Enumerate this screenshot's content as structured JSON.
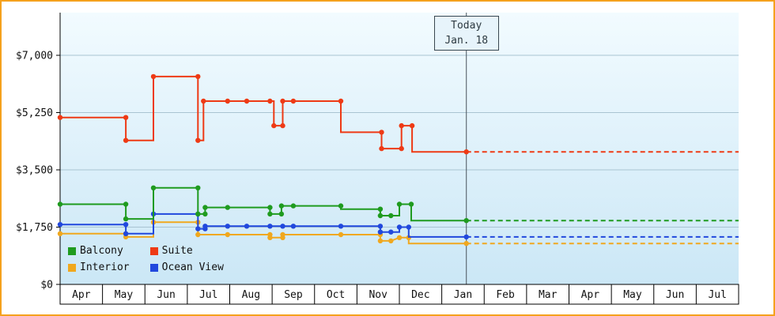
{
  "chart": {
    "frame_border_color": "#f5a11d",
    "plot_bg_top": "#f2fbff",
    "plot_bg_bottom": "#cbe7f6",
    "grid_color": "#a9c4d2",
    "axis_color": "#000000",
    "today_line_color": "#4a545c",
    "today_box_bg": "#e7f4fb"
  },
  "chart_data": {
    "type": "line",
    "title": "",
    "xlabel": "",
    "ylabel": "",
    "x_months": [
      "Apr",
      "May",
      "Jun",
      "Jul",
      "Aug",
      "Sep",
      "Oct",
      "Nov",
      "Dec",
      "Jan",
      "Feb",
      "Mar",
      "Apr",
      "May",
      "Jun",
      "Jul"
    ],
    "y_axis": {
      "min": 0,
      "max": 7000,
      "ticks": [
        {
          "label": "$0",
          "value": 0
        },
        {
          "label": "$1,750",
          "value": 1750
        },
        {
          "label": "$3,500",
          "value": 3500
        },
        {
          "label": "$5,250",
          "value": 5250
        },
        {
          "label": "$7,000",
          "value": 7000
        }
      ]
    },
    "today": {
      "label": "Today",
      "date": "Jan. 18",
      "month_index": 9.58
    },
    "legend_position": "bottom-left",
    "grid": true,
    "series": [
      {
        "name": "Balcony",
        "color": "#1f9b1f",
        "points": [
          [
            0.0,
            2450,
            1
          ],
          [
            1.55,
            2450,
            1
          ],
          [
            1.55,
            2000,
            1
          ],
          [
            2.2,
            2000,
            0
          ],
          [
            2.2,
            2950,
            1
          ],
          [
            3.25,
            2950,
            1
          ],
          [
            3.25,
            2150,
            1
          ],
          [
            3.42,
            2150,
            1
          ],
          [
            3.42,
            2350,
            1
          ],
          [
            3.95,
            2350,
            1
          ],
          [
            4.95,
            2350,
            1
          ],
          [
            4.95,
            2150,
            1
          ],
          [
            5.22,
            2150,
            1
          ],
          [
            5.22,
            2400,
            1
          ],
          [
            5.5,
            2400,
            1
          ],
          [
            6.62,
            2400,
            1
          ],
          [
            6.62,
            2300,
            0
          ],
          [
            7.55,
            2300,
            1
          ],
          [
            7.55,
            2100,
            1
          ],
          [
            7.8,
            2100,
            1
          ],
          [
            8.0,
            2100,
            0
          ],
          [
            8.0,
            2450,
            1
          ],
          [
            8.28,
            2450,
            1
          ],
          [
            8.28,
            1950,
            0
          ],
          [
            9.58,
            1950,
            1
          ]
        ]
      },
      {
        "name": "Suite",
        "color": "#ee3a15",
        "points": [
          [
            0.0,
            5100,
            1
          ],
          [
            1.55,
            5100,
            1
          ],
          [
            1.55,
            4400,
            1
          ],
          [
            2.2,
            4400,
            0
          ],
          [
            2.2,
            6350,
            1
          ],
          [
            3.25,
            6350,
            1
          ],
          [
            3.25,
            4400,
            1
          ],
          [
            3.38,
            4400,
            0
          ],
          [
            3.38,
            5600,
            1
          ],
          [
            3.95,
            5600,
            1
          ],
          [
            4.4,
            5600,
            1
          ],
          [
            4.95,
            5600,
            1
          ],
          [
            5.04,
            5600,
            0
          ],
          [
            5.04,
            4850,
            1
          ],
          [
            5.25,
            4850,
            1
          ],
          [
            5.25,
            5600,
            1
          ],
          [
            5.5,
            5600,
            1
          ],
          [
            6.62,
            5600,
            1
          ],
          [
            6.62,
            4650,
            0
          ],
          [
            7.58,
            4650,
            1
          ],
          [
            7.58,
            4150,
            1
          ],
          [
            8.05,
            4150,
            1
          ],
          [
            8.05,
            4850,
            1
          ],
          [
            8.3,
            4850,
            1
          ],
          [
            8.3,
            4050,
            0
          ],
          [
            9.58,
            4050,
            1
          ]
        ]
      },
      {
        "name": "Interior",
        "color": "#f0a81e",
        "points": [
          [
            0.0,
            1550,
            1
          ],
          [
            1.55,
            1550,
            1
          ],
          [
            1.55,
            1450,
            1
          ],
          [
            2.2,
            1450,
            0
          ],
          [
            2.2,
            1900,
            1
          ],
          [
            3.25,
            1900,
            1
          ],
          [
            3.25,
            1520,
            1
          ],
          [
            3.95,
            1520,
            1
          ],
          [
            4.95,
            1520,
            1
          ],
          [
            4.95,
            1430,
            1
          ],
          [
            5.25,
            1430,
            1
          ],
          [
            5.25,
            1520,
            1
          ],
          [
            6.62,
            1520,
            1
          ],
          [
            7.55,
            1520,
            1
          ],
          [
            7.55,
            1330,
            1
          ],
          [
            7.8,
            1330,
            1
          ],
          [
            8.0,
            1430,
            1
          ],
          [
            8.22,
            1430,
            1
          ],
          [
            8.22,
            1250,
            0
          ],
          [
            9.58,
            1250,
            1
          ]
        ]
      },
      {
        "name": "Ocean View",
        "color": "#2148dd",
        "points": [
          [
            0.0,
            1830,
            1
          ],
          [
            1.55,
            1830,
            1
          ],
          [
            1.55,
            1550,
            1
          ],
          [
            2.2,
            1550,
            0
          ],
          [
            2.2,
            2150,
            1
          ],
          [
            3.25,
            2150,
            1
          ],
          [
            3.25,
            1700,
            1
          ],
          [
            3.42,
            1700,
            1
          ],
          [
            3.42,
            1780,
            1
          ],
          [
            3.95,
            1780,
            1
          ],
          [
            4.4,
            1780,
            1
          ],
          [
            4.95,
            1780,
            1
          ],
          [
            5.25,
            1780,
            1
          ],
          [
            5.5,
            1780,
            1
          ],
          [
            6.62,
            1780,
            1
          ],
          [
            7.55,
            1780,
            1
          ],
          [
            7.55,
            1600,
            1
          ],
          [
            7.8,
            1600,
            1
          ],
          [
            8.0,
            1600,
            0
          ],
          [
            8.0,
            1750,
            1
          ],
          [
            8.22,
            1750,
            1
          ],
          [
            8.22,
            1450,
            0
          ],
          [
            9.58,
            1450,
            1
          ]
        ]
      }
    ]
  }
}
